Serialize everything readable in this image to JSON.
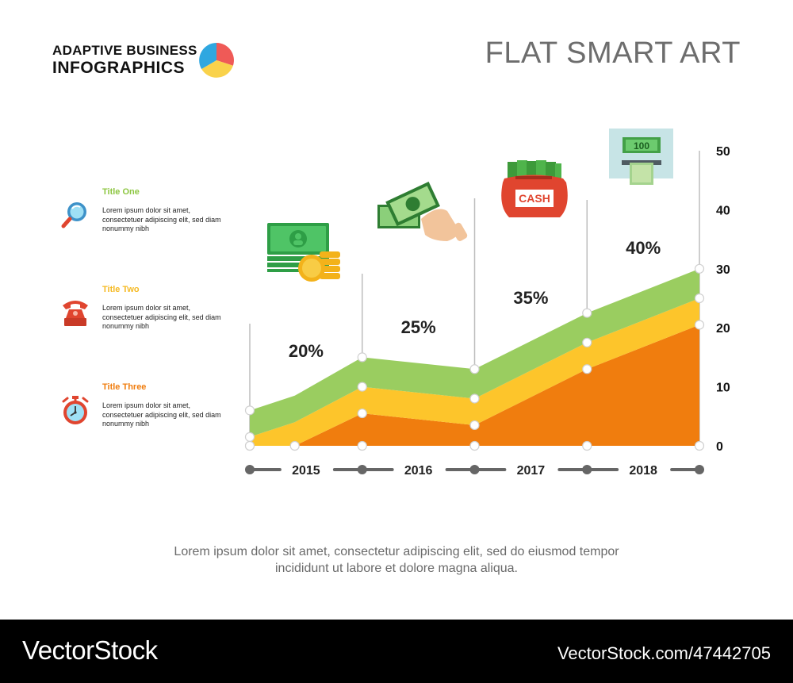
{
  "header": {
    "brand_line1": "ADAPTIVE BUSINESS",
    "brand_line2": "INFOGRAPHICS",
    "title": "FLAT SMART ART"
  },
  "legend": [
    {
      "title": "Title One",
      "text": "Lorem ipsum dolor sit amet, consectetuer adipiscing elit, sed diam nonummy nibh",
      "color": "#8DC641",
      "icon": "magnifier-icon"
    },
    {
      "title": "Title Two",
      "text": "Lorem ipsum dolor sit amet, consectetuer adipiscing elit, sed diam nonummy nibh",
      "color": "#F5B922",
      "icon": "telephone-icon"
    },
    {
      "title": "Title Three",
      "text": "Lorem ipsum dolor sit amet, consectetuer adipiscing elit, sed diam nonummy nibh",
      "color": "#F07D0E",
      "icon": "alarm-clock-icon"
    }
  ],
  "chart_data": {
    "type": "area",
    "stacked": true,
    "x": [
      0,
      0.4,
      1,
      2,
      3,
      4
    ],
    "categories": [
      "2015",
      "2016",
      "2017",
      "2018"
    ],
    "ylim": [
      0,
      50
    ],
    "yticks": [
      0,
      10,
      20,
      30,
      40,
      50
    ],
    "series": [
      {
        "name": "Title Three",
        "color": "#F07D0E",
        "values": [
          0,
          0,
          5.5,
          3.5,
          13,
          20.5
        ]
      },
      {
        "name": "Title Two",
        "color": "#FDC52B",
        "values": [
          1.5,
          4,
          4.5,
          4.5,
          4.5,
          4.5
        ]
      },
      {
        "name": "Title One",
        "color": "#9ACD60",
        "values": [
          4.5,
          4.5,
          5,
          5,
          5,
          5
        ]
      }
    ],
    "point_markers_x": [
      0,
      1,
      2,
      3,
      4
    ],
    "annotations": [
      {
        "label": "20%",
        "x": 0.5,
        "y": 16
      },
      {
        "label": "25%",
        "x": 1.5,
        "y": 20
      },
      {
        "label": "35%",
        "x": 2.5,
        "y": 25
      },
      {
        "label": "40%",
        "x": 3.5,
        "y": 33.5
      }
    ],
    "axis_color": "#666666",
    "grid": false
  },
  "caption": {
    "line1": "Lorem ipsum dolor sit amet, consectetur adipiscing elit, sed do eiusmod tempor",
    "line2": "incididunt ut labore et dolore magna aliqua."
  },
  "footer": {
    "logo": "VectorStock",
    "ref": "VectorStock.com/47442705"
  }
}
